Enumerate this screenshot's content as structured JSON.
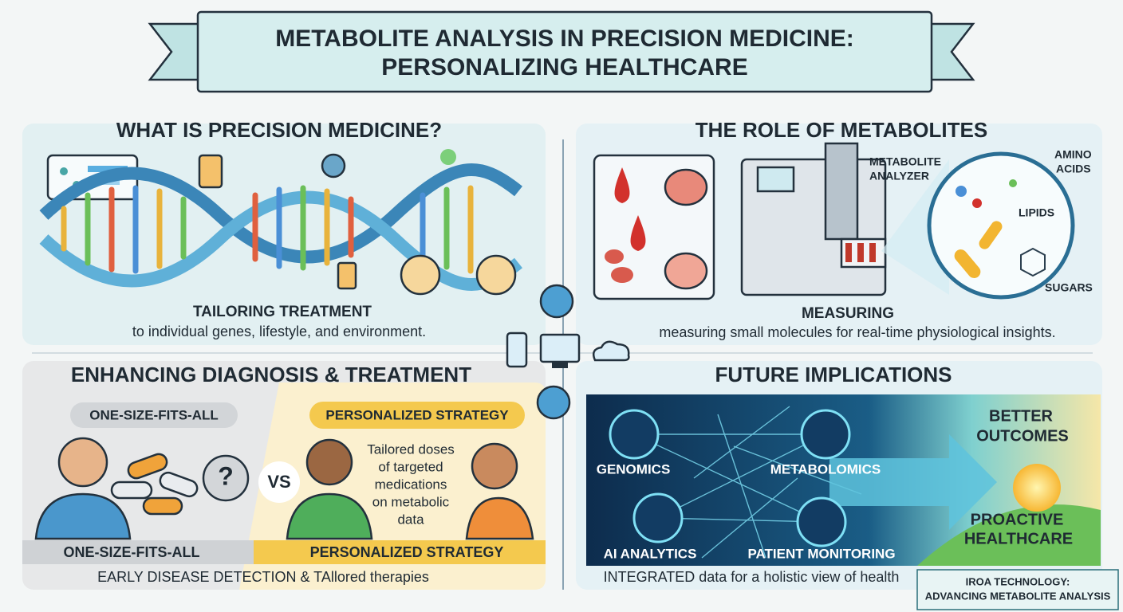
{
  "title": {
    "lines": [
      "METABOLITE ANALYSIS IN PRECISION MEDICINE:",
      "PERSONALIZING HEALTHCARE"
    ]
  },
  "panels": {
    "precision": {
      "heading": "WHAT IS PRECISION MEDICINE?",
      "caption_title": "TAILORING TREATMENT",
      "caption": "to individual genes, lifestyle, and environment."
    },
    "metabolites": {
      "heading": "THE ROLE OF METABOLITES",
      "analyzer_label": [
        "METABOLITE",
        "ANALYZER"
      ],
      "amino_label": [
        "AMINO",
        "ACIDS"
      ],
      "lipids_label": "LIPIDS",
      "sugars_label": "SUGARS",
      "caption_title": "MEASURING",
      "caption": "measuring small molecules for real-time physiological insights."
    },
    "diagnosis": {
      "heading": "ENHANCING DIAGNOSIS & TREATMENT",
      "left_badge": "ONE-SIZE-FITS-ALL",
      "right_badge": "PERSONALIZED STRATEGY",
      "vs": "VS",
      "note": [
        "Tailored doses",
        "of targeted",
        "medications",
        "on metabolic",
        "data"
      ],
      "left_footer": "ONE-SIZE-FITS-ALL",
      "right_footer": "PERSONALIZED STRATEGY",
      "caption": "EARLY DISEASE DETECTION & TAllored therapies"
    },
    "future": {
      "heading": "FUTURE IMPLICATIONS",
      "nodes": [
        "GENOMICS",
        "METABOLOMICS",
        "AI ANALYTICS",
        "PATIENT MONITORING"
      ],
      "outcome_top": [
        "BETTER",
        "OUTCOMES"
      ],
      "outcome_bottom": [
        "PROACTIVE",
        "HEALTHCARE"
      ],
      "caption": "INTEGRATED data for a holistic view of health"
    }
  },
  "badge": [
    "IROA TECHNOLOGY:",
    "ADVANCING METABOLITE ANALYSIS"
  ]
}
